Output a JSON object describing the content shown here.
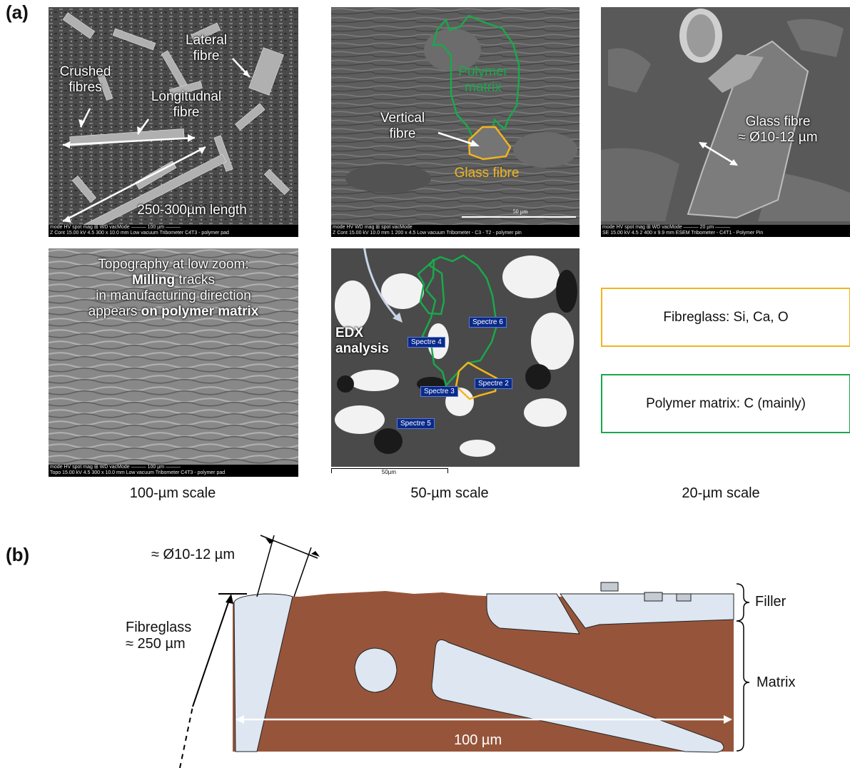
{
  "panel_a_label": "(a)",
  "panel_b_label": "(b)",
  "images": {
    "img1": {
      "labels": {
        "lateral": "Lateral\nfibre",
        "crushed": "Crushed\nfibres",
        "longitudinal": "Longitudnal\nfibre",
        "length": "250-300µm length"
      },
      "bar_row1": "mode    HV    spot mag ⊞   WD    vacMode       ——— 100 µm ———",
      "bar_row2": "Z Cont 15.00 kV  4.5   300 x  10.0 mm Low vacuum    Tribometer C4T3 - polymer pad"
    },
    "img2": {
      "labels": {
        "polymer": "Polymer\nmatrix",
        "vertical": "Vertical\nfibre",
        "glass": "Glass fibre"
      },
      "scale_text": "50 µm",
      "bar_row1": "mode    HV    WD   mag ⊞  spot   vacMode",
      "bar_row2": "Z Cont 15.00 kV 10.0 mm 1 200 x  4.5  Low vacuum   Tribometer - C3 - T2 - polymer pin"
    },
    "img3": {
      "labels": {
        "glass": "Glass fibre\n≈ Ø10-12 µm"
      },
      "bar_row1": "mode    HV    spot mag ⊞   WD   vacMode        ——— 20 µm ———",
      "bar_row2": "SE   15.00 kV  4.5  2 400 x  9.9 mm   ESEM        Tribometer - C4T1 - Polymer Pin"
    },
    "img4": {
      "label_line1": "Topography at low zoom:",
      "label_line2_bold": "Milling",
      "label_line2_rest": " tracks",
      "label_line3": "in manufacturing direction",
      "label_line4_pre": "appears ",
      "label_line4_bold": "on polymer matrix",
      "bar_row1": "mode    HV    spot mag ⊞   WD    vacMode       ——— 100 µm ———",
      "bar_row2": "Topo  15.00 kV  4.5   300 x  10.0 mm Low vacuum    Tribometer C4T3 - polymer pad"
    },
    "img5": {
      "edx": "EDX\nanalysis",
      "spectres": [
        "Spectre 6",
        "Spectre 4",
        "Spectre 2",
        "Spectre 3",
        "Spectre 5"
      ],
      "scale_text": "50µm"
    }
  },
  "legend": {
    "fibreglass": "Fibreglass:  Si, Ca, O",
    "polymer": "Polymer matrix: C (mainly)"
  },
  "scales": [
    "100-µm scale",
    "50-µm scale",
    "20-µm scale"
  ],
  "diagram": {
    "diameter": "≈ Ø10-12 µm",
    "fibreglass_line1": "Fibreglass",
    "fibreglass_line2": "≈ 250 µm",
    "filler": "Filler",
    "matrix": "Matrix",
    "width": "100 µm"
  },
  "colors": {
    "matrix": "#96553a",
    "fibre": "#dde6f1",
    "glass_outline": "#f0b51e",
    "polymer_outline": "#1aa84b"
  }
}
